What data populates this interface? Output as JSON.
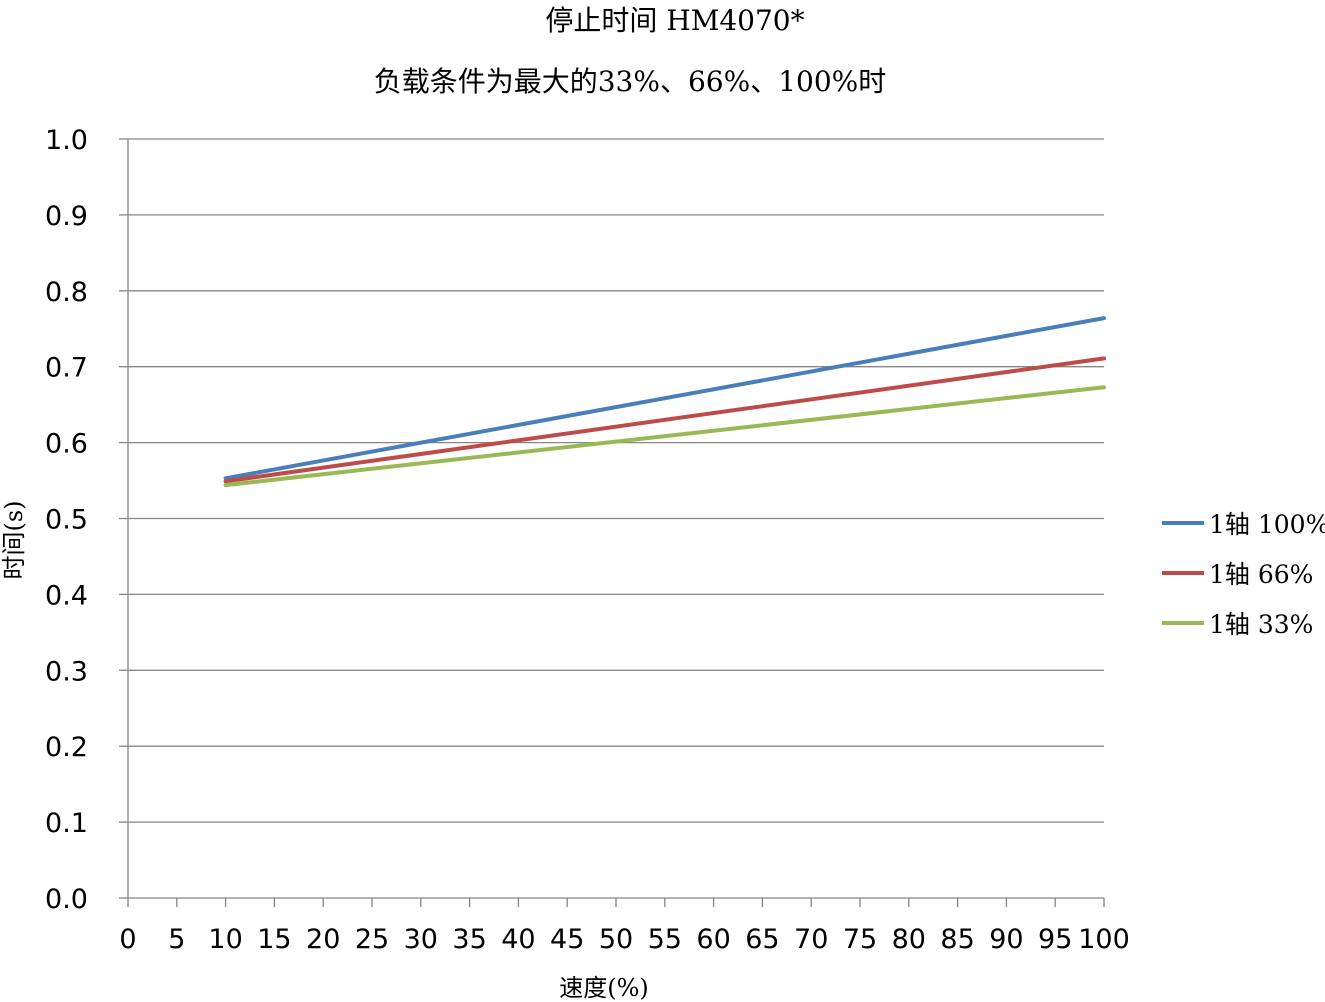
{
  "chart_data": {
    "type": "line",
    "title": "停止时间 HM4070*",
    "subtitle": "负载条件为最大的33%、66%、100%时",
    "xlabel": "速度(%)",
    "ylabel": "时间(s)",
    "xlim": [
      0,
      100
    ],
    "ylim": [
      0,
      1.0
    ],
    "x_ticks": [
      "0",
      "5",
      "10",
      "15",
      "20",
      "25",
      "30",
      "35",
      "40",
      "45",
      "50",
      "55",
      "60",
      "65",
      "70",
      "75",
      "80",
      "85",
      "90",
      "95",
      "100"
    ],
    "y_ticks": [
      "0.0",
      "0.1",
      "0.2",
      "0.3",
      "0.4",
      "0.5",
      "0.6",
      "0.7",
      "0.8",
      "0.9",
      "1.0"
    ],
    "grid": "horizontal",
    "legend_position": "right",
    "series": [
      {
        "name": "1轴 100%",
        "color": "#4a7ebb",
        "x": [
          10,
          100
        ],
        "y": [
          0.553,
          0.764
        ]
      },
      {
        "name": "1轴 66%",
        "color": "#be4b48",
        "x": [
          10,
          100
        ],
        "y": [
          0.549,
          0.711
        ]
      },
      {
        "name": "1轴 33%",
        "color": "#98b954",
        "x": [
          10,
          100
        ],
        "y": [
          0.544,
          0.673
        ]
      }
    ]
  }
}
